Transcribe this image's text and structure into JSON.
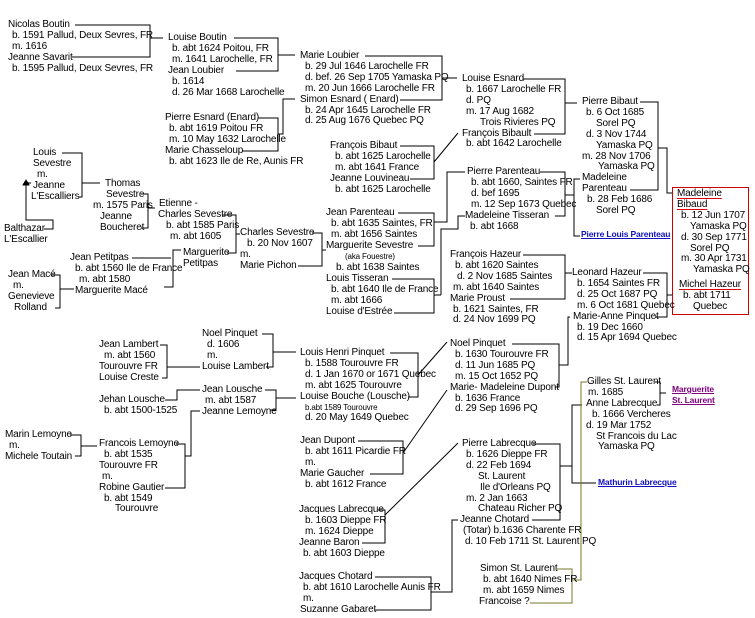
{
  "colors": {
    "line": "#000000",
    "focus_border": "#d00000",
    "focus_underline": "#e00000",
    "olive_line": "#7a7a2a",
    "link_blue": "#1010c0",
    "link_purple": "#800080"
  },
  "blocks": [
    {
      "lines": [
        "Nicolas Boutin",
        "b. 1591  Pallud, Deux Sevres, FR",
        "m. 1616",
        "Jeanne Savarit",
        "b. 1595 Pallud, Deux Sevres, FR"
      ]
    },
    {
      "lines": [
        "Louise Boutin",
        "b. abt 1624 Poitou, FR",
        "m. 1641 Larochelle, FR",
        "Jean Loubier",
        "b. 1614",
        "d. 26 Mar 1668 Larochelle"
      ]
    },
    {
      "lines": [
        "Pierre Esnard (Enard)",
        "b. abt 1619 Poitou FR",
        "m. 10 May 1632 Larochelle",
        "Marie Chasseloup",
        "b. abt 1623 Ile de Re, Aunis FR"
      ]
    },
    {
      "lines": [
        "Marie Loubier",
        "b. 29 Jul 1646 Larochelle FR",
        "d. bef. 26 Sep 1705 Yamaska PQ",
        "m. 20 Jun 1666 Larochelle FR",
        "Simon Esnard ( Enard)",
        "b. 24 Apr 1645 Larochelle FR",
        "d. 25 Aug 1676 Quebec PQ"
      ]
    },
    {
      "lines": [
        "Louise Esnard",
        "b. 1667 Larochelle FR",
        "d. PQ",
        "m. 17 Aug 1682",
        "Trois Rivieres PQ",
        "François Bibault",
        "b. abt 1642 Larochelle"
      ]
    },
    {
      "lines": [
        "François Bibaut",
        "b. abt 1625 Larochelle",
        "m. abt 1641 France",
        "Jeanne Louvineau",
        "b. abt 1625 Larochelle"
      ]
    },
    {
      "lines": [
        "Pierre Bibaut",
        "b. 6 Oct 1685",
        "Sorel  PQ",
        "d. 3 Nov 1744",
        "Yamaska PQ",
        "m. 28 Nov 1706",
        "Yamaska PQ",
        "Madeleine",
        "Parenteau",
        "b. 28 Feb 1686",
        "Sorel PQ"
      ]
    },
    {
      "lines": [
        "Madeleine",
        "Bibaud",
        "b. 12 Jun 1707",
        "Yamaska PQ",
        "d. 30 Sep 1771",
        "Sorel PQ",
        "m. 30 Apr 1731",
        "Yamaska PQ",
        "Michel Hazeur",
        "b. abt 1711",
        "Quebec"
      ]
    },
    {
      "lines": [
        "Pierre Parenteau",
        "b. abt 1660, Saintes FR",
        "d. bef 1695",
        "m. 12 Sep 1673 Quebec",
        "Madeleine Tisseran",
        "b. abt 1668"
      ]
    },
    {
      "lines": [
        "Jean Parenteau",
        "b. abt 1635  Saintes, FR",
        "m. abt 1656 Saintes",
        "Marguerite Sevestre",
        "(aka Fouestre)",
        "b. abt 1638 Saintes"
      ]
    },
    {
      "lines": [
        "Louis Tisseran",
        "b. abt 1640  Ile de France",
        "m. abt 1666",
        "Louise d'Estrée"
      ]
    },
    {
      "lines": [
        "François Hazeur",
        "b. abt 1620 Saintes",
        "d. 2 Nov 1685  Saintes",
        "m. abt 1640 Saintes",
        "Marie Proust",
        "b. 1621  Saintes, FR",
        "d. 24 Nov 1699 PQ"
      ]
    },
    {
      "lines": [
        "Leonard Hazeur",
        "b. 1654 Saintes FR",
        "d. 25 Oct 1687 PQ",
        "m. 6 Oct 1681 Quebec",
        "Marie-Anne Pinquet",
        "b. 19 Dec 1660",
        "d. 15 Apr 1694 Quebec"
      ]
    },
    {
      "lines": [
        "Noel Pinquet",
        "b. 1630 Tourouvre FR",
        "d. 11 Jun 1685 PQ",
        "m. 15 Oct 1652 PQ",
        "Marie- Madeleine Dupont",
        "b. 1636 France",
        "d. 29 Sep 1696 PQ"
      ]
    },
    {
      "lines": [
        "Louis Henri Pinquet",
        "b. 1588 Tourouvre FR",
        "d. 1 Jan 1670 or 1671 Quebec",
        "m. abt 1625 Tourouvre",
        "Louise Bouche (Lousche)",
        "b.abt 1589 Tourouvre",
        "d. 20 May 1649 Quebec"
      ]
    },
    {
      "lines": [
        "Noel Pinquet",
        "d. 1606",
        "m.",
        "Louise Lambert"
      ]
    },
    {
      "lines": [
        "Jean Lambert",
        "m. abt 1560",
        "Tourouvre FR",
        "Louise Creste"
      ]
    },
    {
      "lines": [
        "Jehan Lousche",
        "b. abt 1500-1525"
      ]
    },
    {
      "lines": [
        "Jean Lousche",
        "m. abt 1587",
        "Jeanne Lemoyne"
      ]
    },
    {
      "lines": [
        "Marin Lemoyne",
        "m.",
        "Michele Toutain"
      ]
    },
    {
      "lines": [
        "Francois Lemoyne",
        "b. abt 1535",
        "Tourouvre FR",
        "m.",
        "Robine Gautier",
        "b. abt 1549",
        "Tourouvre"
      ]
    },
    {
      "lines": [
        "Jean Dupont",
        "b. abt 1611 Picardie FR",
        "m.",
        "Marie Gaucher",
        "b. abt 1612 France"
      ]
    },
    {
      "lines": [
        "Pierre Labrecque",
        "b. 1626 Dieppe FR",
        "d. 22 Feb 1694",
        "St. Laurent",
        "Ile d'Orleans PQ",
        "m. 2 Jan 1663",
        "Chateau Richer PQ",
        "Jeanne Chotard",
        "(Totar) b.1636  Charente FR",
        "d. 10 Feb 1711 St. Laurent PQ"
      ]
    },
    {
      "lines": [
        "Jacques Labrecque",
        "b. 1603 Dieppe FR",
        "m. 1624 Dieppe",
        "Jeanne Baron",
        "b. abt 1603 Dieppe"
      ]
    },
    {
      "lines": [
        "Jacques Chotard",
        "b. abt 1610 Larochelle Aunis FR",
        "m.",
        "Suzanne Gabaret"
      ]
    },
    {
      "lines": [
        "Simon St. Laurent",
        "b. abt 1640 Nimes FR",
        "m.  abt 1659 Nimes",
        "Francoise ?"
      ]
    },
    {
      "lines": [
        "Gilles St. Laurent",
        "m. 1685",
        "Anne Labrecque",
        "b. 1666 Vercheres",
        "d. 19 Mar 1752",
        "St Francois du Lac",
        "Yamaska PQ"
      ]
    },
    {
      "lines": [
        "Louis",
        "Sevestre",
        "m.",
        "Jeanne",
        "L'Escalliers"
      ]
    },
    {
      "lines": [
        "Balthazar",
        "L'Escallier"
      ]
    },
    {
      "lines": [
        "Thomas",
        "Sevestre",
        "m. 1575 Paris",
        "Jeanne",
        "Boucheret"
      ]
    },
    {
      "lines": [
        "Etienne -",
        "Charles Sevestre",
        "b. abt 1585 Paris",
        "m. abt 1605"
      ]
    },
    {
      "lines": [
        "Marguerite",
        "Petitpas"
      ]
    },
    {
      "lines": [
        "Charles Sevestre",
        "b. 20 Nov 1607",
        "m.",
        "Marie Pichon"
      ]
    },
    {
      "lines": [
        "Jean Petitpas",
        "b. abt 1560 Ile de France",
        "m. abt 1580",
        "Marguerite Macé"
      ]
    },
    {
      "lines": [
        "Jean Macé",
        "m.",
        "Genevieve",
        "Rolland"
      ]
    }
  ],
  "links": [
    {
      "label": "Pierre Louis Parenteau",
      "color": "#1010c0"
    },
    {
      "label": "Marguerite",
      "color": "#800080"
    },
    {
      "label": "St. Laurent",
      "color": "#800080"
    },
    {
      "label": "Mathurin Labrecque",
      "color": "#1010c0"
    }
  ]
}
